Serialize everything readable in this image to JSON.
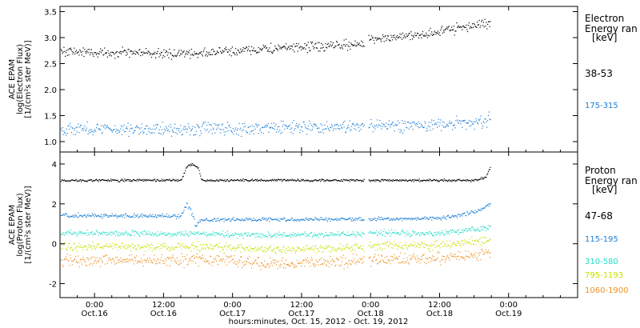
{
  "chart_data": {
    "type": "scatter",
    "xlabel": "hours:minutes, Oct. 15, 2012 - Oct. 19, 2012",
    "x_range_hours": [
      -6.0,
      84.0
    ],
    "x_ticks": [
      {
        "hours": 0,
        "time": "0:00",
        "date": "Oct.16"
      },
      {
        "hours": 12,
        "time": "12:00",
        "date": "Oct.16"
      },
      {
        "hours": 24,
        "time": "0:00",
        "date": "Oct.17"
      },
      {
        "hours": 36,
        "time": "12:00",
        "date": "Oct.17"
      },
      {
        "hours": 48,
        "time": "0:00",
        "date": "Oct.18"
      },
      {
        "hours": 60,
        "time": "12:00",
        "date": "Oct.18"
      },
      {
        "hours": 72,
        "time": "0:00",
        "date": "Oct.19"
      }
    ],
    "panels": [
      {
        "id": "electron",
        "ylabel_lines": [
          "ACE EPAM",
          "log(Electron Flux)",
          "[1/(cm²s ster MeV)]"
        ],
        "ylim": [
          0.8,
          3.6
        ],
        "yticks": [
          1.0,
          1.5,
          2.0,
          2.5,
          3.0,
          3.5
        ],
        "ytick_labels": [
          "1.0",
          "1.5",
          "2.0",
          "2.5",
          "3.0",
          "3.5"
        ],
        "legend_title_lines": [
          "Electron",
          "Energy ran"
        ],
        "legend_unit": "[keV]",
        "series": [
          {
            "name": "38-53",
            "color": "#000000",
            "trend": [
              [
                -6,
                2.75
              ],
              [
                0,
                2.72
              ],
              [
                8,
                2.72
              ],
              [
                12,
                2.69
              ],
              [
                20,
                2.72
              ],
              [
                28,
                2.78
              ],
              [
                40,
                2.84
              ],
              [
                47,
                2.88
              ],
              [
                47.5,
                2.98
              ],
              [
                56,
                3.06
              ],
              [
                60,
                3.12
              ],
              [
                66,
                3.25
              ],
              [
                68.8,
                3.3
              ]
            ],
            "noise": 0.045
          },
          {
            "name": "175-315",
            "color": "#1f7fd6",
            "trend": [
              [
                -6,
                1.25
              ],
              [
                12,
                1.25
              ],
              [
                24,
                1.26
              ],
              [
                36,
                1.28
              ],
              [
                47,
                1.3
              ],
              [
                48,
                1.31
              ],
              [
                60,
                1.33
              ],
              [
                66,
                1.38
              ],
              [
                68.8,
                1.42
              ]
            ],
            "noise": 0.06
          }
        ]
      },
      {
        "id": "proton",
        "ylabel_lines": [
          "ACE EPAM",
          "log(Proton Flux)",
          "[1/(cm²s ster MeV)]"
        ],
        "ylim": [
          -2.7,
          4.6
        ],
        "yticks": [
          -2,
          0,
          2,
          4
        ],
        "ytick_labels": [
          "-2",
          "0",
          "2",
          "4"
        ],
        "legend_title_lines": [
          "Proton",
          "Energy ran"
        ],
        "legend_unit": "[keV]",
        "series": [
          {
            "name": "47-68",
            "color": "#000000",
            "trend": [
              [
                -6,
                3.2
              ],
              [
                15,
                3.2
              ],
              [
                15.5,
                3.55
              ],
              [
                16,
                3.9
              ],
              [
                17,
                4.0
              ],
              [
                18,
                3.8
              ],
              [
                18.6,
                3.2
              ],
              [
                47,
                3.2
              ],
              [
                48,
                3.2
              ],
              [
                66,
                3.2
              ],
              [
                68,
                3.35
              ],
              [
                68.8,
                3.9
              ]
            ],
            "noise": 0.03
          },
          {
            "name": "115-195",
            "color": "#1f7fd6",
            "trend": [
              [
                -6,
                1.45
              ],
              [
                12,
                1.4
              ],
              [
                15,
                1.4
              ],
              [
                16,
                2.0
              ],
              [
                17,
                1.5
              ],
              [
                17.5,
                0.9
              ],
              [
                18.3,
                1.2
              ],
              [
                30,
                1.25
              ],
              [
                40,
                1.25
              ],
              [
                47,
                1.25
              ],
              [
                48,
                1.25
              ],
              [
                60,
                1.3
              ],
              [
                66,
                1.6
              ],
              [
                68.8,
                2.0
              ]
            ],
            "noise": 0.05
          },
          {
            "name": "310-580",
            "color": "#22ddc8",
            "trend": [
              [
                -6,
                0.55
              ],
              [
                24,
                0.5
              ],
              [
                30,
                0.45
              ],
              [
                47,
                0.5
              ],
              [
                48,
                0.55
              ],
              [
                60,
                0.55
              ],
              [
                68.8,
                0.85
              ]
            ],
            "noise": 0.07
          },
          {
            "name": "795-1193",
            "color": "#c8e000",
            "trend": [
              [
                -6,
                -0.1
              ],
              [
                24,
                -0.15
              ],
              [
                30,
                -0.3
              ],
              [
                47,
                -0.15
              ],
              [
                48,
                -0.1
              ],
              [
                60,
                -0.05
              ],
              [
                68.8,
                0.2
              ]
            ],
            "noise": 0.1
          },
          {
            "name": "1060-1900",
            "color": "#f09020",
            "trend": [
              [
                -6,
                -0.8
              ],
              [
                24,
                -0.8
              ],
              [
                30,
                -1.0
              ],
              [
                47,
                -0.8
              ],
              [
                48,
                -0.75
              ],
              [
                60,
                -0.7
              ],
              [
                68.8,
                -0.45
              ]
            ],
            "noise": 0.14
          }
        ]
      }
    ]
  }
}
